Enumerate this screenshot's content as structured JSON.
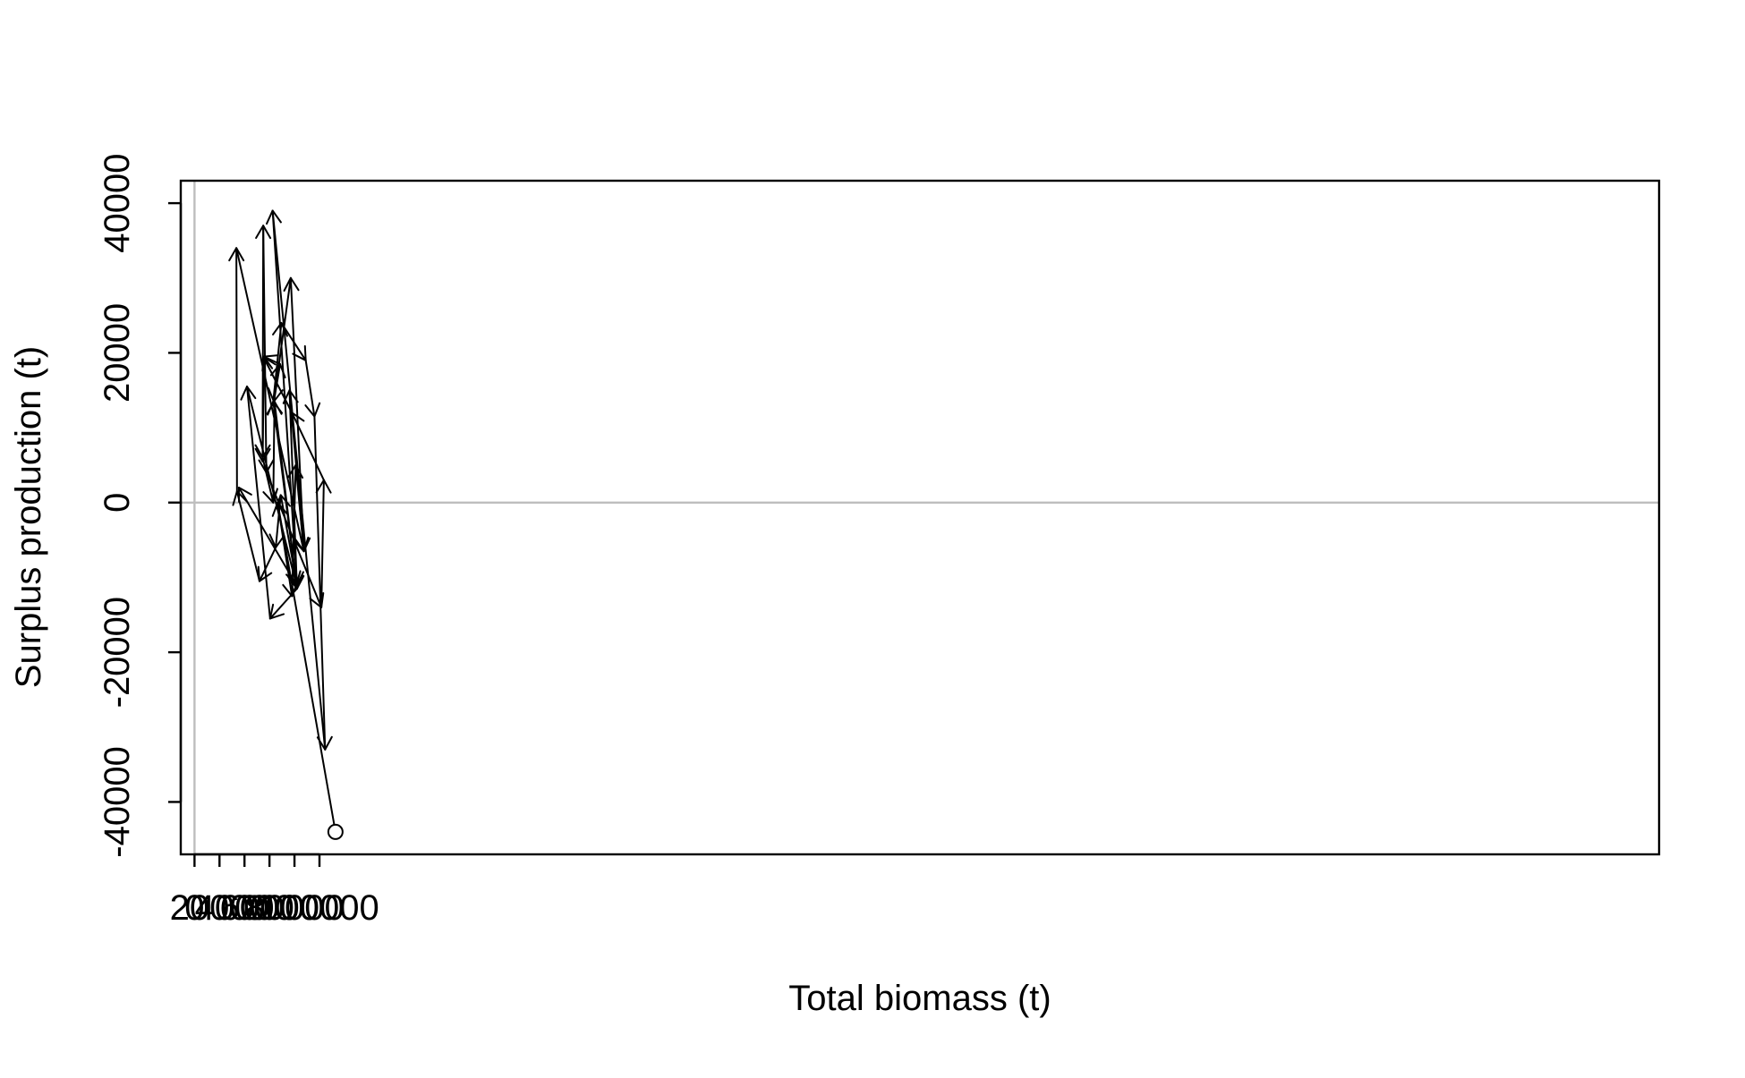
{
  "chart_data": {
    "type": "line",
    "title": "",
    "xlabel": "Total biomass (t)",
    "ylabel": "Surplus production (t)",
    "xlim": [
      -11000,
      1172000
    ],
    "ylim": [
      -47000,
      43000
    ],
    "x_ticks": [
      0,
      20000,
      40000,
      60000,
      80000,
      100000
    ],
    "x_tick_labels": [
      "0",
      "20000",
      "40000",
      "60000",
      "80000",
      "100000"
    ],
    "y_ticks": [
      -40000,
      -20000,
      0,
      20000,
      40000
    ],
    "y_tick_labels": [
      "-40000",
      "-20000",
      "0",
      "20000",
      "40000"
    ],
    "reference_lines": {
      "x": 0,
      "y": 0,
      "color": "#bebebe"
    },
    "connection_style": "arrows",
    "start_marker": "open-circle",
    "series": [
      {
        "points": [
          [
            112800,
            -44000
          ],
          [
            66500,
            0
          ],
          [
            78000,
            -12500
          ],
          [
            81000,
            5000
          ],
          [
            87500,
            -6500
          ],
          [
            76000,
            15000
          ],
          [
            82000,
            -11500
          ],
          [
            63000,
            13500
          ],
          [
            69500,
            24000
          ],
          [
            89000,
            19000
          ],
          [
            96000,
            11500
          ],
          [
            104500,
            -33000
          ],
          [
            62500,
            39000
          ],
          [
            82000,
            -11000
          ],
          [
            69000,
            1000
          ],
          [
            65000,
            -6000
          ],
          [
            52000,
            -10500
          ],
          [
            34000,
            1500
          ],
          [
            33500,
            34000
          ],
          [
            87500,
            -6500
          ],
          [
            77000,
            30000
          ],
          [
            63500,
            13500
          ],
          [
            68500,
            18500
          ],
          [
            55500,
            19500
          ],
          [
            54500,
            5500
          ],
          [
            55000,
            37000
          ],
          [
            57500,
            4000
          ],
          [
            101500,
            -14000
          ],
          [
            103500,
            3000
          ],
          [
            78000,
            12000
          ],
          [
            55000,
            19500
          ],
          [
            54500,
            6000
          ],
          [
            63000,
            0
          ],
          [
            64000,
            13500
          ],
          [
            82000,
            -11500
          ],
          [
            60500,
            -15500
          ],
          [
            42000,
            15500
          ],
          [
            81500,
            -11000
          ],
          [
            35500,
            2000
          ]
        ]
      }
    ]
  }
}
